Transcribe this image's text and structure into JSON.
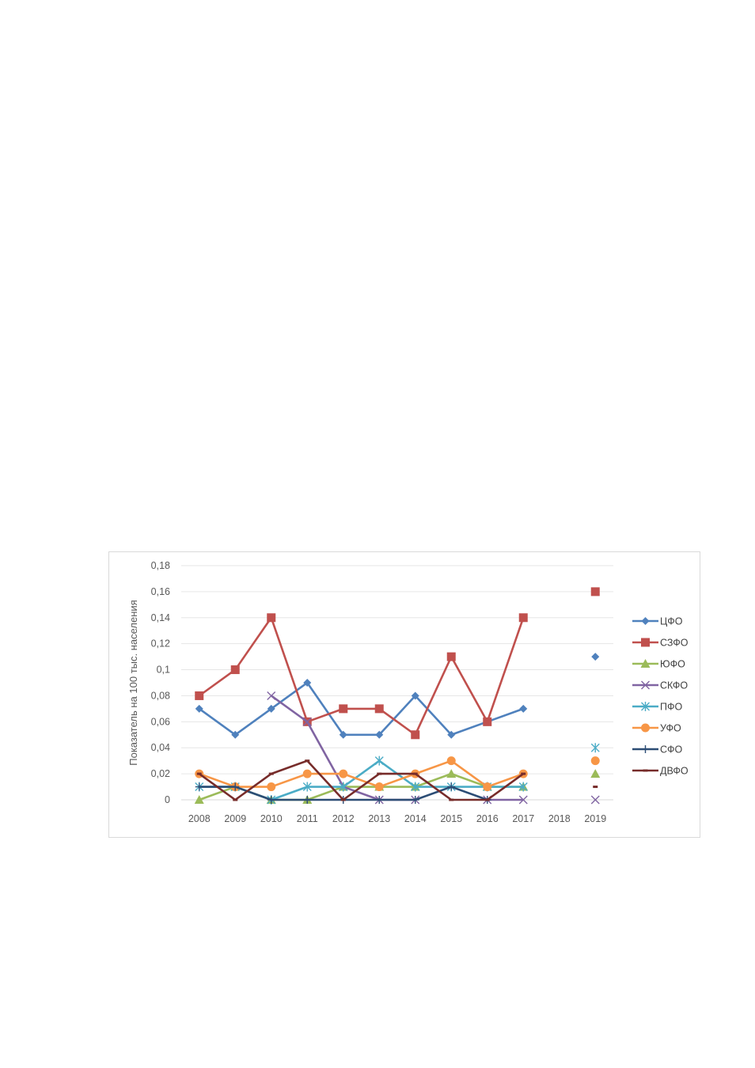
{
  "chart_data": {
    "type": "line",
    "title": "",
    "xlabel": "",
    "ylabel": "Показатель на 100 тыс. населения",
    "categories": [
      "2008",
      "2009",
      "2010",
      "2011",
      "2012",
      "2013",
      "2014",
      "2015",
      "2016",
      "2017",
      "2018",
      "2019"
    ],
    "ylim": [
      0,
      0.18
    ],
    "yticks": [
      0,
      0.02,
      0.04,
      0.06,
      0.08,
      0.1,
      0.12,
      0.14,
      0.16,
      0.18
    ],
    "ytick_labels": [
      "0",
      "0,02",
      "0,04",
      "0,06",
      "0,08",
      "0,1",
      "0,12",
      "0,14",
      "0,16",
      "0,18"
    ],
    "grid": true,
    "legend_position": "right",
    "series": [
      {
        "name": "ЦФО",
        "color": "#4F81BD",
        "marker": "diamond",
        "values": [
          0.07,
          0.05,
          0.07,
          0.09,
          0.05,
          0.05,
          0.08,
          0.05,
          0.06,
          0.07,
          null,
          0.11
        ]
      },
      {
        "name": "СЗФО",
        "color": "#C0504D",
        "marker": "square",
        "values": [
          0.08,
          0.1,
          0.14,
          0.06,
          0.07,
          0.07,
          0.05,
          0.11,
          0.06,
          0.14,
          null,
          0.16
        ]
      },
      {
        "name": "ЮФО",
        "color": "#9BBB59",
        "marker": "triangle",
        "values": [
          0,
          0.01,
          0,
          0,
          0.01,
          0.01,
          0.01,
          0.02,
          0.01,
          0.01,
          null,
          0.02
        ]
      },
      {
        "name": "СКФО",
        "color": "#8064A2",
        "marker": "x",
        "values": [
          null,
          null,
          0.08,
          0.06,
          0.01,
          0,
          0,
          null,
          0,
          0,
          null,
          0
        ]
      },
      {
        "name": "ПФО",
        "color": "#4BACC6",
        "marker": "star",
        "values": [
          0.01,
          0.01,
          0,
          0.01,
          0.01,
          0.03,
          0.01,
          0.01,
          0.01,
          0.01,
          null,
          0.04
        ]
      },
      {
        "name": "УФО",
        "color": "#F79646",
        "marker": "circle",
        "values": [
          0.02,
          0.01,
          0.01,
          0.02,
          0.02,
          0.01,
          0.02,
          0.03,
          0.01,
          0.02,
          null,
          0.03
        ]
      },
      {
        "name": "СФО",
        "color": "#2C4D75",
        "marker": "plus",
        "values": [
          0.01,
          0.01,
          0,
          0,
          0,
          0,
          0,
          0.01,
          0,
          null,
          null,
          null
        ]
      },
      {
        "name": "ДВФО",
        "color": "#772C2A",
        "marker": "dash",
        "values": [
          0.02,
          0,
          0.02,
          0.03,
          0,
          0.02,
          0.02,
          0,
          0,
          0.02,
          null,
          0.01
        ]
      }
    ]
  }
}
